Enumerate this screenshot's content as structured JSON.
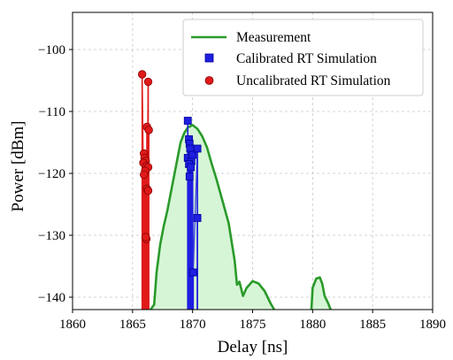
{
  "chart_data": {
    "type": "line",
    "xlabel": "Delay [ns]",
    "ylabel": "Power [dBm]",
    "xlim": [
      1860,
      1890
    ],
    "ylim": [
      -142,
      -94
    ],
    "xticks": [
      1860,
      1865,
      1870,
      1875,
      1880,
      1885,
      1890
    ],
    "yticks": [
      -140,
      -130,
      -120,
      -110,
      -100
    ],
    "xtick_labels": [
      "1860",
      "1865",
      "1870",
      "1875",
      "1880",
      "1885",
      "1890"
    ],
    "ytick_labels": [
      "−140",
      "−130",
      "−120",
      "−110",
      "−100"
    ],
    "grid": true,
    "legend_position": "top-right",
    "baseline": -142,
    "series": [
      {
        "name": "Measurement",
        "kind": "line-fill",
        "color": "#2a9a2a",
        "fill_color": "#d6f5d6",
        "points": [
          [
            1866.5,
            -142
          ],
          [
            1866.8,
            -141.2
          ],
          [
            1867.0,
            -136.0
          ],
          [
            1867.3,
            -131.5
          ],
          [
            1867.6,
            -128.5
          ],
          [
            1867.9,
            -126.0
          ],
          [
            1868.3,
            -122.0
          ],
          [
            1868.7,
            -118.0
          ],
          [
            1869.0,
            -115.0
          ],
          [
            1869.3,
            -113.5
          ],
          [
            1869.6,
            -112.6
          ],
          [
            1870.0,
            -112.2
          ],
          [
            1870.4,
            -112.8
          ],
          [
            1870.8,
            -114.0
          ],
          [
            1871.2,
            -115.8
          ],
          [
            1871.6,
            -118.5
          ],
          [
            1872.0,
            -121.0
          ],
          [
            1872.5,
            -124.5
          ],
          [
            1873.0,
            -128.0
          ],
          [
            1873.5,
            -134.0
          ],
          [
            1873.7,
            -138.0
          ],
          [
            1873.9,
            -137.5
          ],
          [
            1874.2,
            -139.8
          ],
          [
            1874.5,
            -138.5
          ],
          [
            1875.0,
            -137.4
          ],
          [
            1875.5,
            -137.8
          ],
          [
            1876.0,
            -139.0
          ],
          [
            1876.5,
            -141.0
          ],
          [
            1876.8,
            -142
          ],
          [
            null,
            null
          ],
          [
            1879.9,
            -142
          ],
          [
            1880.0,
            -138.5
          ],
          [
            1880.3,
            -137.0
          ],
          [
            1880.6,
            -136.8
          ],
          [
            1880.8,
            -137.8
          ],
          [
            1881.0,
            -139.8
          ],
          [
            1881.3,
            -141.0
          ],
          [
            1881.5,
            -142
          ]
        ]
      },
      {
        "name": "Calibrated RT Simulation",
        "kind": "stem",
        "marker": "square",
        "color": "#1f1fe0",
        "points": [
          [
            1869.6,
            -111.5
          ],
          [
            1869.7,
            -114.5
          ],
          [
            1869.75,
            -115.2
          ],
          [
            1869.8,
            -116.0
          ],
          [
            1869.6,
            -117.5
          ],
          [
            1869.9,
            -118.0
          ],
          [
            1869.7,
            -118.5
          ],
          [
            1869.85,
            -119.0
          ],
          [
            1869.75,
            -120.5
          ],
          [
            1870.0,
            -117.0
          ],
          [
            1870.4,
            -116.0
          ],
          [
            1870.4,
            -127.2
          ],
          [
            1870.05,
            -136.0
          ]
        ]
      },
      {
        "name": "Uncalibrated RT Simulation",
        "kind": "stem",
        "marker": "circle",
        "color": "#e01a1a",
        "points": [
          [
            1865.8,
            -104.0
          ],
          [
            1866.3,
            -105.2
          ],
          [
            1866.2,
            -112.5
          ],
          [
            1866.35,
            -113.0
          ],
          [
            1865.95,
            -116.8
          ],
          [
            1866.0,
            -117.5
          ],
          [
            1866.1,
            -118.0
          ],
          [
            1865.9,
            -118.3
          ],
          [
            1866.15,
            -118.8
          ],
          [
            1866.3,
            -119.0
          ],
          [
            1866.05,
            -119.6
          ],
          [
            1865.95,
            -120.2
          ],
          [
            1866.2,
            -122.5
          ],
          [
            1866.3,
            -122.8
          ],
          [
            1866.15,
            -130.6
          ],
          [
            1866.1,
            -130.3
          ]
        ]
      }
    ]
  }
}
